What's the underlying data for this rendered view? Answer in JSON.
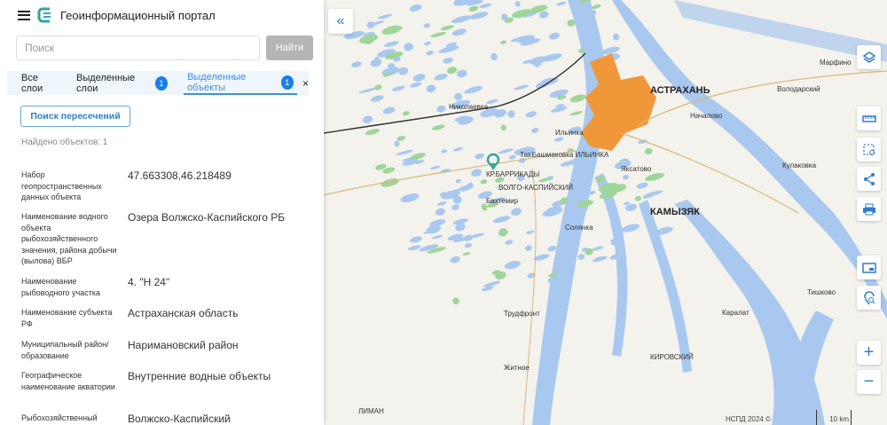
{
  "header": {
    "title": "Геоинформационный портал",
    "menu_icon": "hamburger-icon",
    "logo_icon": "portal-logo-icon"
  },
  "search": {
    "placeholder": "Поиск",
    "value": "",
    "button": "Найти"
  },
  "tabs": [
    {
      "label": "Все слои",
      "active": false
    },
    {
      "label": "Выделенные слои",
      "badge": "1",
      "active": false
    },
    {
      "label": "Выделенные объекты",
      "badge": "1",
      "active": true
    }
  ],
  "tabs_close": "×",
  "intersection_button": "Поиск пересечений",
  "found_text": "Найдено объектов: 1",
  "attributes": [
    {
      "label": "Набор геопространственных данных объекта",
      "value": "47.663308,46.218489"
    },
    {
      "label": "Наименование водного объекта рыбохозяйственного значения, района добычи (вылова) ВБР",
      "value": "Озера Волжско-Каспийского РБ"
    },
    {
      "label": "Наименование рыбоводного участка",
      "value": "4. \"Н 24\""
    },
    {
      "label": "Наименование субъекта РФ",
      "value": "Астраханская область"
    },
    {
      "label": "Муниципальный район/ образование",
      "value": "Наримановский район"
    },
    {
      "label": "Географическое наименование акватории",
      "value": "Внутренние водные объекты"
    },
    {
      "label": "Рыбохозяйственный",
      "value": "Волжско-Каспийский"
    }
  ],
  "map": {
    "labels": [
      "АСТРАХАНЬ",
      "КАМЫЗЯК",
      "КР.БАРРИКАДЫ",
      "ВОЛГО-КАСПИЙСКИЙ",
      "Тат.Башмаковка ИЛЬИНКА",
      "Николаевка",
      "Яксатово",
      "Началово",
      "Кулаковка",
      "ЛИМАН",
      "КИРОВСКИЙ",
      "Житное",
      "Тишково",
      "Володарский",
      "Марфино",
      "Каралат",
      "Трудфронт",
      "Бахтемир",
      "Ильинка",
      "Солянка"
    ],
    "attribution": "НСПД 2024 ©",
    "scale": "10 km",
    "colors": {
      "water": "#a9c8ef",
      "land": "#f3f2ec",
      "city": "#f0973a",
      "accent": "#2f7dc9",
      "marker": "#3aa39a"
    }
  },
  "controls": {
    "collapse_icon": "double-chevron-left-icon",
    "items": [
      "layers-icon",
      "ruler-icon",
      "select-area-icon",
      "share-icon",
      "print-icon",
      "minimap-icon",
      "search-location-icon",
      "zoom-in-icon",
      "zoom-out-icon"
    ],
    "zoom_in": "+",
    "zoom_out": "−"
  }
}
